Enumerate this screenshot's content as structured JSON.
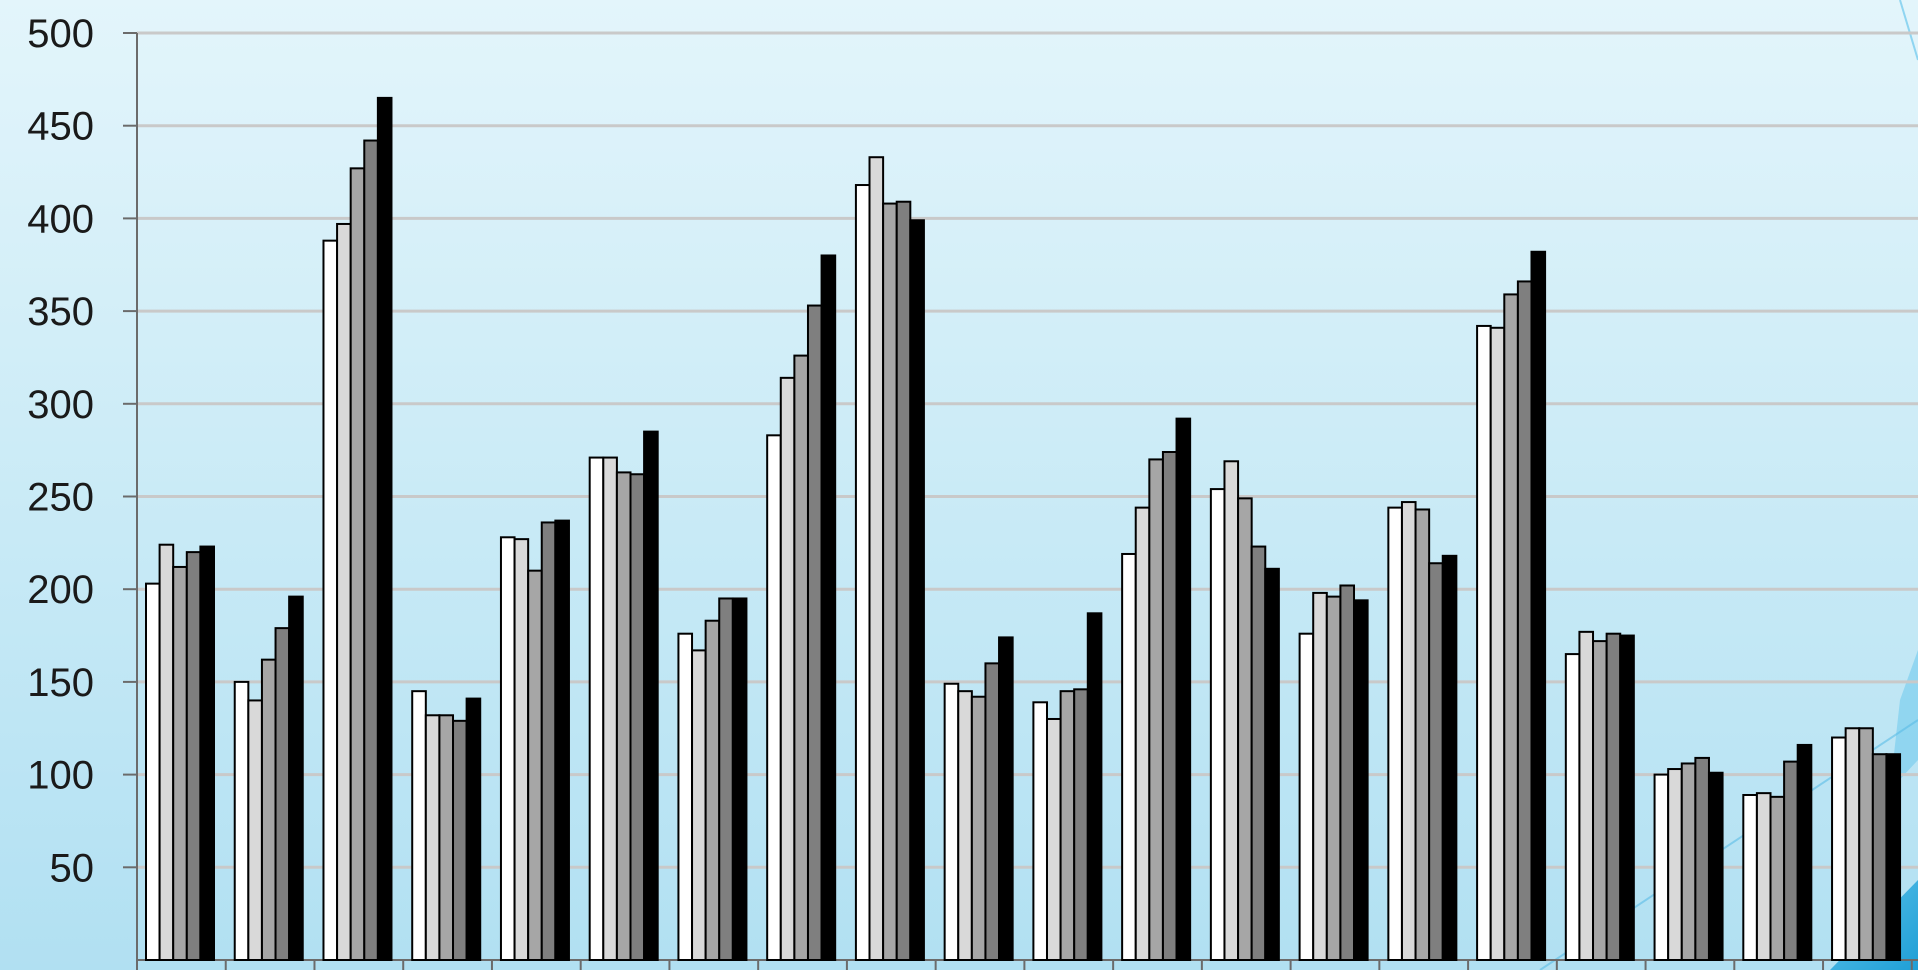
{
  "chart_data": {
    "type": "bar",
    "title": "",
    "xlabel": "",
    "ylabel": "",
    "ylim": [
      0,
      500
    ],
    "yticks": [
      50,
      100,
      150,
      200,
      250,
      300,
      350,
      400,
      450,
      500
    ],
    "grid": true,
    "legend": "none",
    "categories": [
      "",
      "",
      "",
      "",
      "",
      "",
      "",
      "",
      "",
      "",
      "",
      "",
      "",
      "",
      "",
      "",
      "",
      "",
      "",
      "",
      "",
      ""
    ],
    "series": [
      {
        "color": "#ffffff",
        "values": [
          203,
          150,
          388,
          145,
          228,
          271,
          176,
          283,
          418,
          149,
          139,
          219,
          254,
          176,
          244,
          342,
          165,
          100,
          89,
          120,
          0,
          0
        ]
      },
      {
        "color": "#d9d9d9",
        "values": [
          224,
          140,
          397,
          132,
          227,
          271,
          167,
          314,
          433,
          145,
          130,
          244,
          269,
          198,
          247,
          341,
          177,
          103,
          90,
          125,
          0,
          0
        ]
      },
      {
        "color": "#a6a6a6",
        "values": [
          212,
          162,
          427,
          132,
          210,
          263,
          183,
          326,
          408,
          142,
          145,
          270,
          249,
          196,
          243,
          359,
          172,
          106,
          88,
          125,
          0,
          0
        ]
      },
      {
        "color": "#7f7f7f",
        "values": [
          220,
          179,
          442,
          129,
          236,
          262,
          195,
          353,
          409,
          160,
          146,
          274,
          223,
          202,
          214,
          366,
          176,
          109,
          107,
          111,
          0,
          0
        ]
      },
      {
        "color": "#000000",
        "values": [
          223,
          196,
          465,
          141,
          237,
          285,
          195,
          380,
          399,
          174,
          187,
          292,
          211,
          194,
          218,
          382,
          175,
          101,
          116,
          111,
          0,
          0
        ]
      }
    ]
  }
}
